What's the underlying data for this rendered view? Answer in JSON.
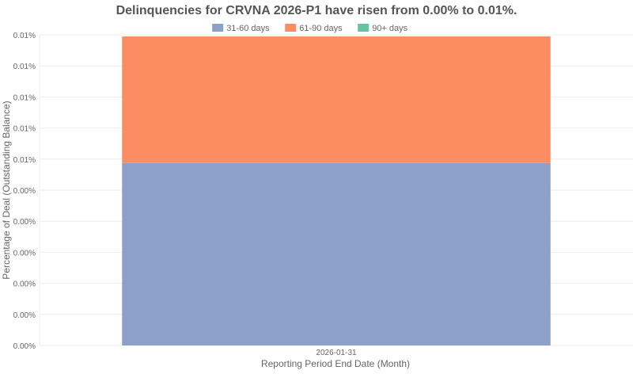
{
  "chart_data": {
    "type": "bar",
    "stacked": true,
    "title": "Delinquencies for CRVNA 2026-P1 have risen from 0.00% to 0.01%.",
    "xlabel": "Reporting Period End Date (Month)",
    "ylabel": "Percentage of Deal (Outstanding Balance)",
    "categories": [
      "2026-01-31"
    ],
    "ylim": [
      0,
      0.01
    ],
    "yticks": [
      0,
      0.001,
      0.002,
      0.003,
      0.004,
      0.005,
      0.006,
      0.007,
      0.008,
      0.009,
      0.01
    ],
    "ytick_labels": [
      "0.00%",
      "0.00%",
      "0.00%",
      "0.00%",
      "0.00%",
      "0.00%",
      "0.01%",
      "0.01%",
      "0.01%",
      "0.01%",
      "0.01%"
    ],
    "grid": true,
    "legend_position": "top",
    "series": [
      {
        "name": "31-60 days",
        "color": "#8da0cb",
        "values": [
          0.00587
        ]
      },
      {
        "name": "61-90 days",
        "color": "#fc8d62",
        "values": [
          0.00408
        ]
      },
      {
        "name": "90+ days",
        "color": "#66c2a5",
        "values": [
          0
        ]
      }
    ]
  }
}
